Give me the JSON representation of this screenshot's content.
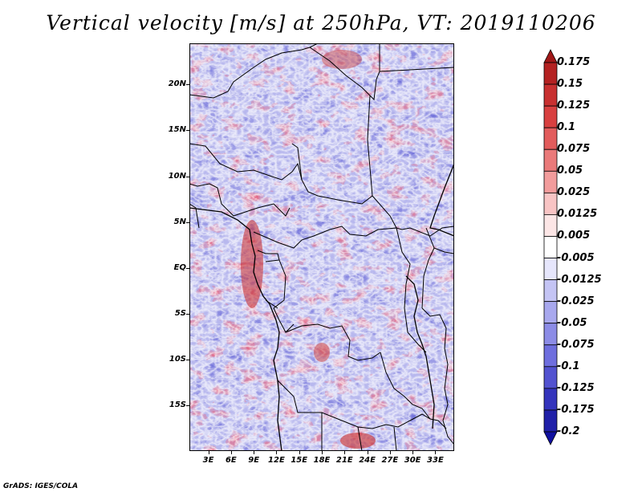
{
  "title": "Vertical velocity [m/s] at 250hPa, VT: 2019110206",
  "credit": "GrADS: IGES/COLA",
  "map": {
    "variable": "Vertical velocity",
    "units": "m/s",
    "level": "250hPa",
    "valid_time": "2019110206",
    "lon_range": [
      0.5,
      35.5
    ],
    "lat_range": [
      -20,
      24.5
    ],
    "lat_labels": [
      {
        "text": "20N",
        "value": 20
      },
      {
        "text": "15N",
        "value": 15
      },
      {
        "text": "10N",
        "value": 10
      },
      {
        "text": "5N",
        "value": 5
      },
      {
        "text": "EQ",
        "value": 0
      },
      {
        "text": "5S",
        "value": -5
      },
      {
        "text": "10S",
        "value": -10
      },
      {
        "text": "15S",
        "value": -15
      }
    ],
    "lon_labels": [
      {
        "text": "3E",
        "value": 3
      },
      {
        "text": "6E",
        "value": 6
      },
      {
        "text": "9E",
        "value": 9
      },
      {
        "text": "12E",
        "value": 12
      },
      {
        "text": "15E",
        "value": 15
      },
      {
        "text": "18E",
        "value": 18
      },
      {
        "text": "21E",
        "value": 21
      },
      {
        "text": "24E",
        "value": 24
      },
      {
        "text": "27E",
        "value": 27
      },
      {
        "text": "30E",
        "value": 30
      },
      {
        "text": "33E",
        "value": 33
      }
    ]
  },
  "colorbar": {
    "labels": [
      "0.175",
      "0.15",
      "0.125",
      "0.1",
      "0.075",
      "0.05",
      "0.025",
      "0.0125",
      "0.005",
      "-0.005",
      "-0.0125",
      "-0.025",
      "-0.05",
      "-0.075",
      "-0.1",
      "-0.125",
      "-0.175",
      "-0.2"
    ],
    "colors": [
      "#a01818",
      "#b42222",
      "#c83030",
      "#d84040",
      "#e25c5c",
      "#ea7a7a",
      "#f29c9c",
      "#f8c4c4",
      "#fce6e6",
      "#ffffff",
      "#e6e6fc",
      "#c4c4f4",
      "#a8a8ee",
      "#8c8ce6",
      "#6e6ede",
      "#5252d0",
      "#3434bc",
      "#2020a8",
      "#1010a0"
    ]
  }
}
